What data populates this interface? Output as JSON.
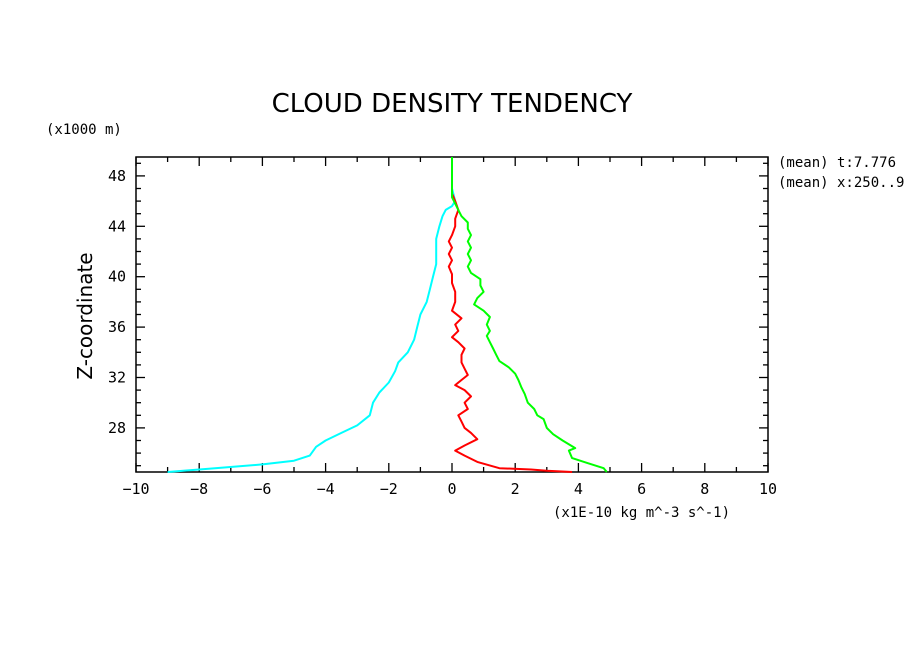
{
  "chart_data": {
    "type": "line",
    "title": "CLOUD DENSITY TENDENCY",
    "ylabel": "Z-coordinate",
    "y_unit_label": "(x1000 m)",
    "x_unit_label": "(x1E-10 kg m^-3 s^-1)",
    "annotations": [
      "(mean) t:7.776",
      "(mean) x:250..9"
    ],
    "xlim": [
      -10,
      10
    ],
    "ylim": [
      24.5,
      49.5
    ],
    "xticks": [
      -10,
      -8,
      -6,
      -4,
      -2,
      0,
      2,
      4,
      6,
      8,
      10
    ],
    "yticks": [
      28,
      32,
      36,
      40,
      44,
      48
    ],
    "grid": false,
    "series": [
      {
        "color": "#00ffff",
        "points": [
          [
            -9.0,
            24.5
          ],
          [
            -8.5,
            24.6
          ],
          [
            -7.5,
            24.8
          ],
          [
            -6.0,
            25.1
          ],
          [
            -5.0,
            25.4
          ],
          [
            -4.5,
            25.8
          ],
          [
            -4.3,
            26.5
          ],
          [
            -4.0,
            27.0
          ],
          [
            -3.5,
            27.6
          ],
          [
            -3.0,
            28.2
          ],
          [
            -2.6,
            29.0
          ],
          [
            -2.5,
            30.0
          ],
          [
            -2.3,
            30.8
          ],
          [
            -2.0,
            31.6
          ],
          [
            -1.8,
            32.5
          ],
          [
            -1.7,
            33.2
          ],
          [
            -1.4,
            34.0
          ],
          [
            -1.2,
            35.0
          ],
          [
            -1.1,
            36.0
          ],
          [
            -1.0,
            37.0
          ],
          [
            -0.8,
            38.0
          ],
          [
            -0.7,
            39.0
          ],
          [
            -0.6,
            40.0
          ],
          [
            -0.5,
            41.0
          ],
          [
            -0.5,
            42.0
          ],
          [
            -0.5,
            43.0
          ],
          [
            -0.4,
            44.0
          ],
          [
            -0.3,
            44.8
          ],
          [
            -0.2,
            45.3
          ],
          [
            0.0,
            45.6
          ],
          [
            0.1,
            46.0
          ],
          [
            0.0,
            47.0
          ],
          [
            0.0,
            48.0
          ],
          [
            0.0,
            49.5
          ]
        ]
      },
      {
        "color": "#ff0000",
        "points": [
          [
            3.8,
            24.5
          ],
          [
            3.0,
            24.6
          ],
          [
            2.5,
            24.7
          ],
          [
            1.5,
            24.8
          ],
          [
            0.8,
            25.3
          ],
          [
            0.4,
            25.8
          ],
          [
            0.1,
            26.2
          ],
          [
            0.4,
            26.6
          ],
          [
            0.8,
            27.1
          ],
          [
            0.6,
            27.6
          ],
          [
            0.4,
            28.0
          ],
          [
            0.3,
            28.5
          ],
          [
            0.2,
            29.0
          ],
          [
            0.5,
            29.5
          ],
          [
            0.4,
            30.0
          ],
          [
            0.6,
            30.5
          ],
          [
            0.4,
            31.0
          ],
          [
            0.1,
            31.4
          ],
          [
            0.3,
            31.8
          ],
          [
            0.5,
            32.2
          ],
          [
            0.4,
            32.7
          ],
          [
            0.3,
            33.2
          ],
          [
            0.3,
            33.8
          ],
          [
            0.4,
            34.3
          ],
          [
            0.2,
            34.8
          ],
          [
            0.0,
            35.2
          ],
          [
            0.2,
            35.7
          ],
          [
            0.1,
            36.2
          ],
          [
            0.3,
            36.7
          ],
          [
            0.0,
            37.3
          ],
          [
            0.1,
            38.0
          ],
          [
            0.1,
            38.8
          ],
          [
            0.0,
            39.5
          ],
          [
            0.0,
            40.2
          ],
          [
            -0.1,
            40.8
          ],
          [
            0.0,
            41.3
          ],
          [
            -0.1,
            41.8
          ],
          [
            0.0,
            42.3
          ],
          [
            -0.1,
            42.8
          ],
          [
            0.0,
            43.3
          ],
          [
            0.1,
            44.0
          ],
          [
            0.1,
            44.6
          ],
          [
            0.2,
            45.3
          ],
          [
            0.1,
            46.0
          ],
          [
            0.0,
            46.6
          ],
          [
            0.0,
            47.3
          ]
        ]
      },
      {
        "color": "#00ff00",
        "points": [
          [
            4.9,
            24.5
          ],
          [
            4.8,
            24.8
          ],
          [
            4.3,
            25.2
          ],
          [
            3.8,
            25.6
          ],
          [
            3.7,
            26.2
          ],
          [
            3.9,
            26.4
          ],
          [
            3.5,
            27.0
          ],
          [
            3.2,
            27.5
          ],
          [
            3.0,
            28.0
          ],
          [
            2.9,
            28.7
          ],
          [
            2.7,
            29.0
          ],
          [
            2.6,
            29.5
          ],
          [
            2.4,
            30.0
          ],
          [
            2.3,
            30.7
          ],
          [
            2.2,
            31.2
          ],
          [
            2.1,
            31.8
          ],
          [
            2.0,
            32.3
          ],
          [
            1.8,
            32.8
          ],
          [
            1.5,
            33.3
          ],
          [
            1.4,
            33.8
          ],
          [
            1.3,
            34.3
          ],
          [
            1.2,
            34.8
          ],
          [
            1.1,
            35.3
          ],
          [
            1.2,
            35.7
          ],
          [
            1.1,
            36.2
          ],
          [
            1.2,
            36.8
          ],
          [
            1.0,
            37.3
          ],
          [
            0.7,
            37.8
          ],
          [
            0.8,
            38.3
          ],
          [
            1.0,
            38.8
          ],
          [
            0.9,
            39.3
          ],
          [
            0.9,
            39.8
          ],
          [
            0.6,
            40.3
          ],
          [
            0.5,
            40.8
          ],
          [
            0.6,
            41.3
          ],
          [
            0.5,
            41.8
          ],
          [
            0.6,
            42.3
          ],
          [
            0.5,
            42.8
          ],
          [
            0.6,
            43.3
          ],
          [
            0.5,
            43.8
          ],
          [
            0.5,
            44.3
          ],
          [
            0.3,
            44.8
          ],
          [
            0.2,
            45.3
          ],
          [
            0.1,
            45.8
          ],
          [
            0.0,
            46.3
          ],
          [
            0.0,
            47.0
          ],
          [
            0.0,
            48.0
          ],
          [
            0.0,
            49.5
          ]
        ]
      }
    ]
  }
}
